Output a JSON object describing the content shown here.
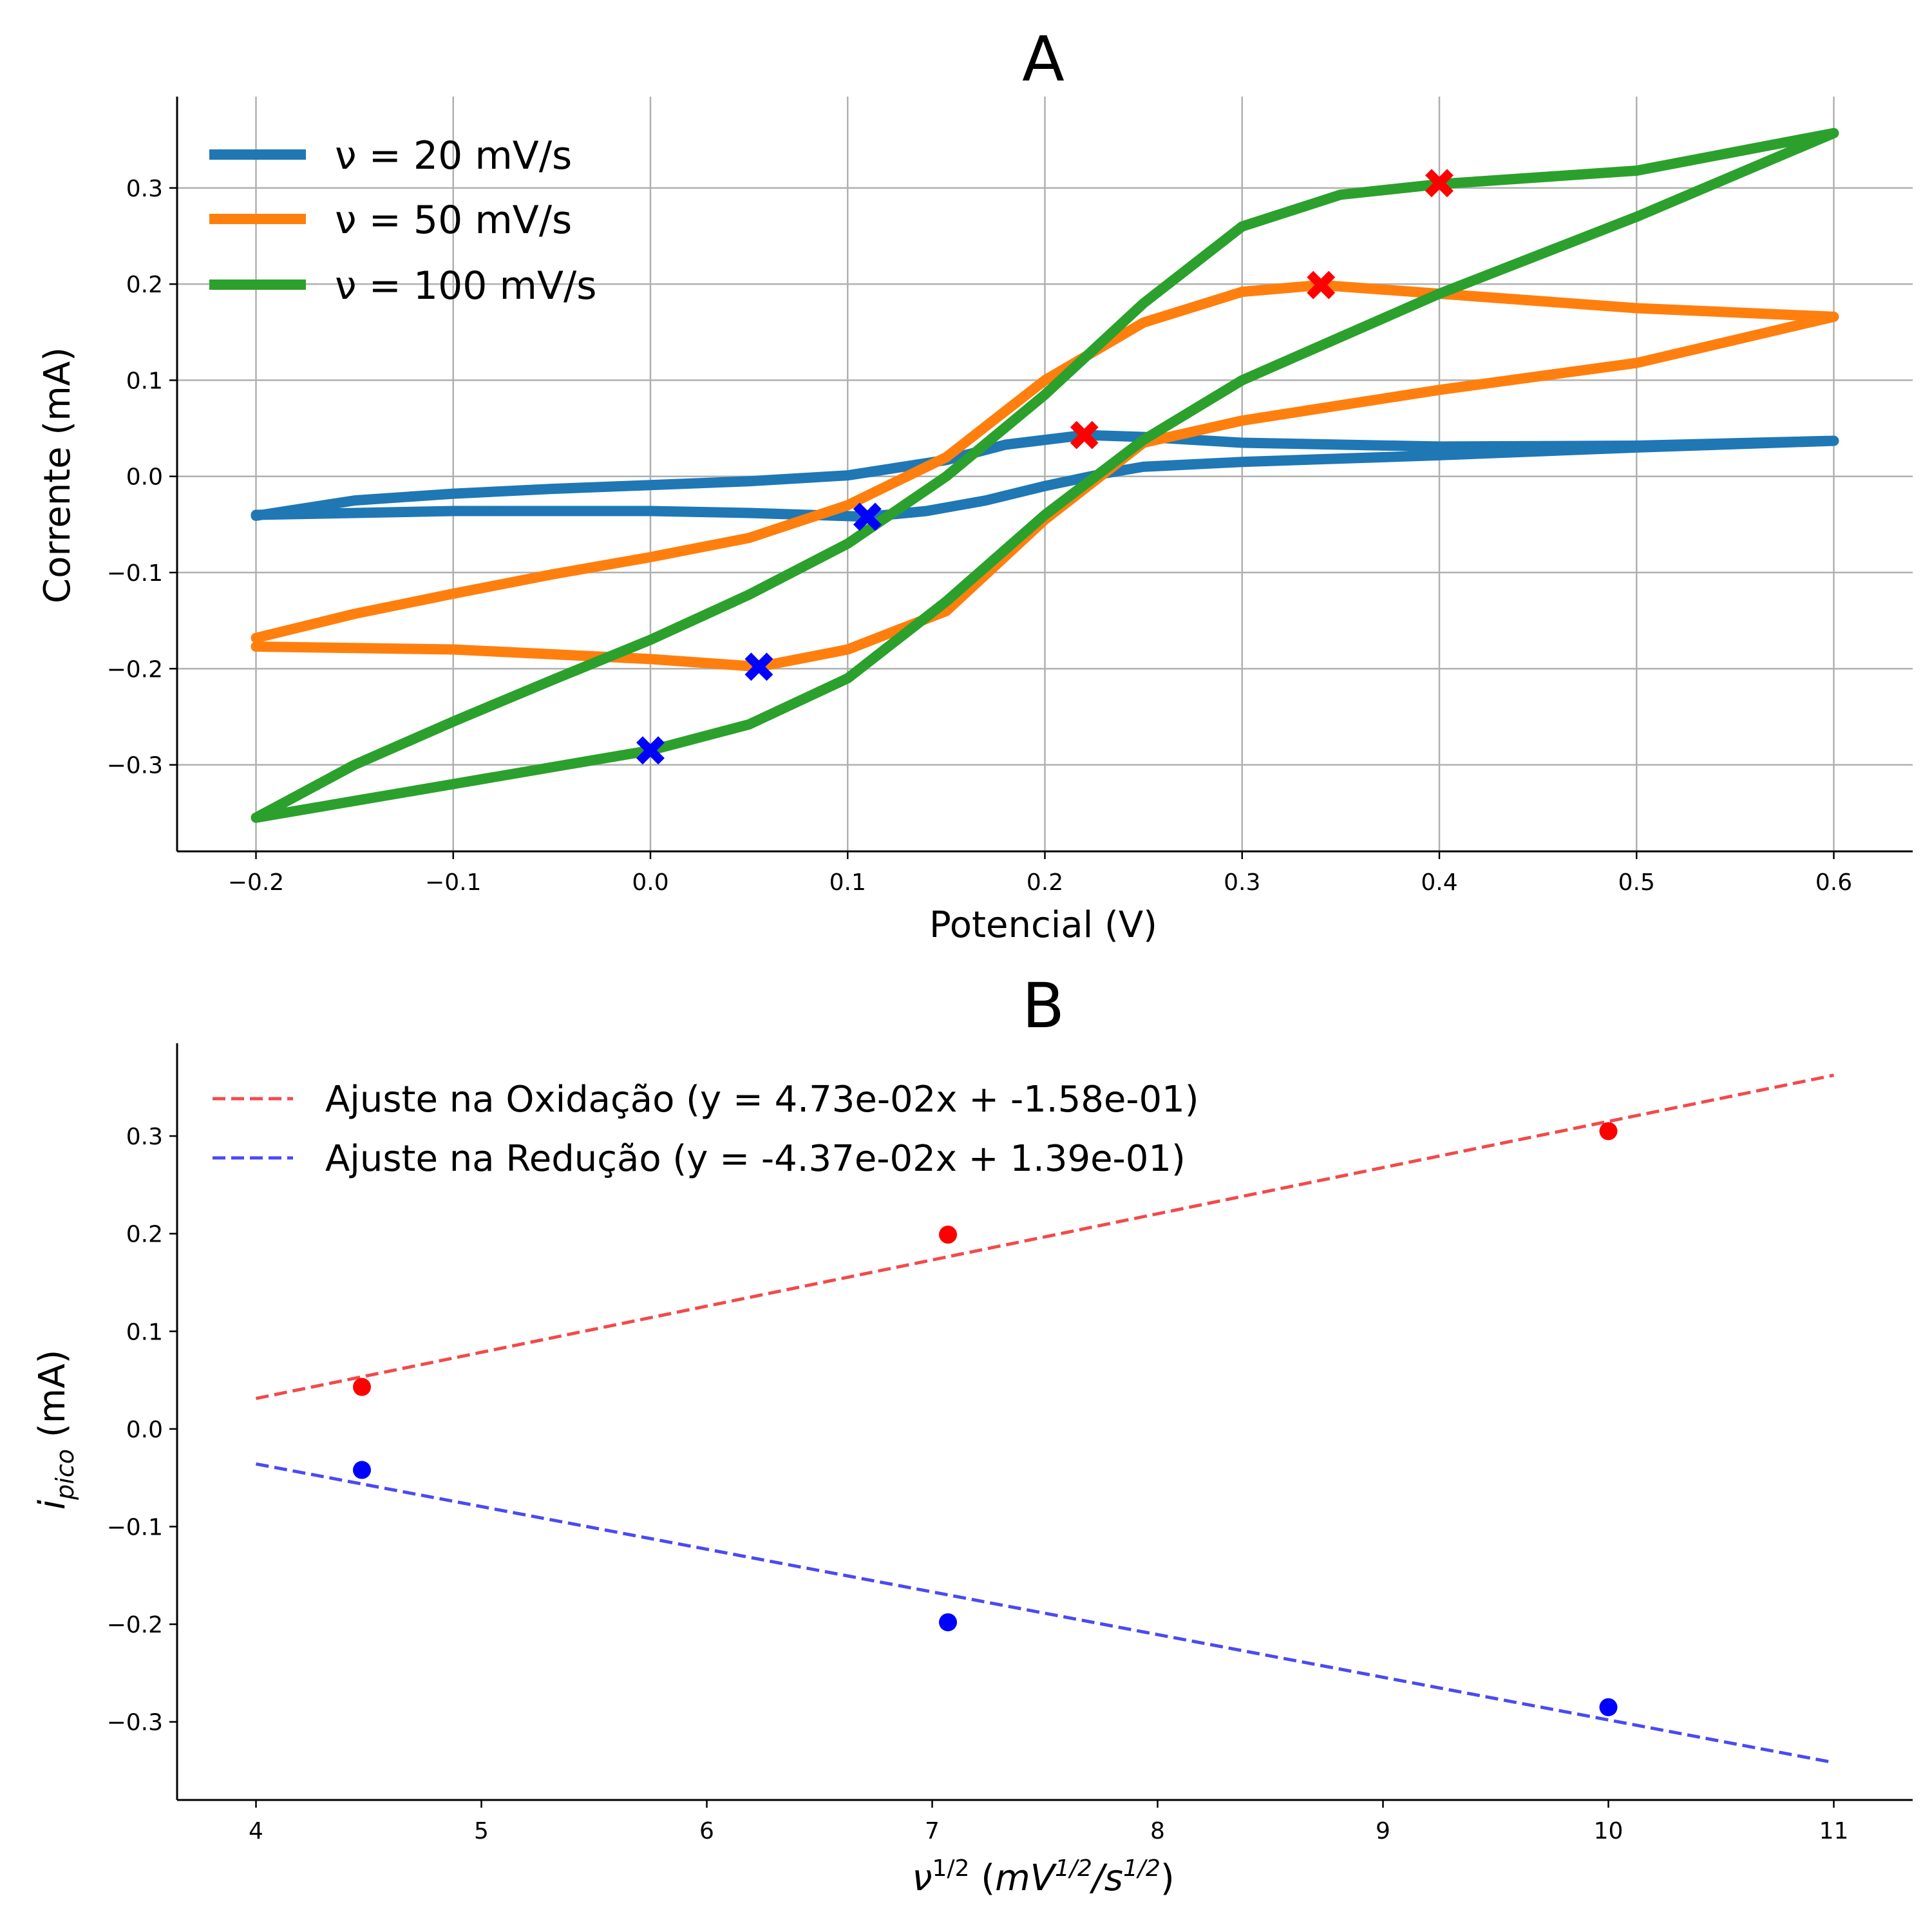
{
  "chart_data": [
    {
      "type": "line",
      "title": "A",
      "xlabel": "Potencial (V)",
      "ylabel": "Corrente (mA)",
      "xlim": [
        -0.24,
        0.64
      ],
      "ylim": [
        -0.39,
        0.395
      ],
      "xticks": [
        -0.2,
        -0.1,
        0.0,
        0.1,
        0.2,
        0.3,
        0.4,
        0.5,
        0.6
      ],
      "xtick_labels": [
        "−0.2",
        "−0.1",
        "0.0",
        "0.1",
        "0.2",
        "0.3",
        "0.4",
        "0.5",
        "0.6"
      ],
      "yticks": [
        -0.3,
        -0.2,
        -0.1,
        0.0,
        0.1,
        0.2,
        0.3
      ],
      "ytick_labels": [
        "−0.3",
        "−0.2",
        "−0.1",
        "0.0",
        "0.1",
        "0.2",
        "0.3"
      ],
      "grid": true,
      "legend_position": "top-left",
      "series": [
        {
          "name": "ν = 20 mV/s",
          "color": "#1f77b4",
          "forward": [
            [
              -0.2,
              -0.041
            ],
            [
              -0.15,
              -0.025
            ],
            [
              -0.1,
              -0.018
            ],
            [
              -0.05,
              -0.013
            ],
            [
              0.0,
              -0.009
            ],
            [
              0.05,
              -0.005
            ],
            [
              0.1,
              0.001
            ],
            [
              0.15,
              0.017
            ],
            [
              0.18,
              0.033
            ],
            [
              0.22,
              0.043
            ],
            [
              0.25,
              0.041
            ],
            [
              0.3,
              0.035
            ],
            [
              0.4,
              0.031
            ],
            [
              0.5,
              0.032
            ],
            [
              0.6,
              0.037
            ]
          ],
          "reverse": [
            [
              0.6,
              0.037
            ],
            [
              0.5,
              0.03
            ],
            [
              0.4,
              0.022
            ],
            [
              0.3,
              0.015
            ],
            [
              0.25,
              0.01
            ],
            [
              0.23,
              0.003
            ],
            [
              0.2,
              -0.01
            ],
            [
              0.17,
              -0.025
            ],
            [
              0.14,
              -0.036
            ],
            [
              0.11,
              -0.042
            ],
            [
              0.05,
              -0.038
            ],
            [
              0.0,
              -0.036
            ],
            [
              -0.1,
              -0.036
            ],
            [
              -0.2,
              -0.04
            ]
          ]
        },
        {
          "name": "ν = 50 mV/s",
          "color": "#ff7f0e",
          "forward": [
            [
              -0.2,
              -0.168
            ],
            [
              -0.15,
              -0.143
            ],
            [
              -0.1,
              -0.122
            ],
            [
              -0.05,
              -0.102
            ],
            [
              0.0,
              -0.084
            ],
            [
              0.05,
              -0.064
            ],
            [
              0.1,
              -0.03
            ],
            [
              0.15,
              0.02
            ],
            [
              0.2,
              0.1
            ],
            [
              0.25,
              0.16
            ],
            [
              0.3,
              0.192
            ],
            [
              0.34,
              0.199
            ],
            [
              0.4,
              0.19
            ],
            [
              0.5,
              0.175
            ],
            [
              0.6,
              0.166
            ]
          ],
          "reverse": [
            [
              0.6,
              0.166
            ],
            [
              0.5,
              0.118
            ],
            [
              0.4,
              0.09
            ],
            [
              0.3,
              0.058
            ],
            [
              0.25,
              0.035
            ],
            [
              0.2,
              -0.045
            ],
            [
              0.15,
              -0.14
            ],
            [
              0.1,
              -0.18
            ],
            [
              0.055,
              -0.198
            ],
            [
              0.0,
              -0.19
            ],
            [
              -0.05,
              -0.185
            ],
            [
              -0.1,
              -0.18
            ],
            [
              -0.2,
              -0.177
            ]
          ]
        },
        {
          "name": "ν = 100 mV/s",
          "color": "#2ca02c",
          "forward": [
            [
              -0.2,
              -0.355
            ],
            [
              -0.15,
              -0.3
            ],
            [
              -0.1,
              -0.255
            ],
            [
              -0.05,
              -0.212
            ],
            [
              0.0,
              -0.17
            ],
            [
              0.05,
              -0.123
            ],
            [
              0.1,
              -0.07
            ],
            [
              0.15,
              0.0
            ],
            [
              0.2,
              0.085
            ],
            [
              0.25,
              0.18
            ],
            [
              0.3,
              0.26
            ],
            [
              0.35,
              0.293
            ],
            [
              0.4,
              0.304
            ],
            [
              0.5,
              0.318
            ],
            [
              0.6,
              0.357
            ]
          ],
          "reverse": [
            [
              0.6,
              0.357
            ],
            [
              0.5,
              0.27
            ],
            [
              0.4,
              0.19
            ],
            [
              0.3,
              0.1
            ],
            [
              0.25,
              0.038
            ],
            [
              0.2,
              -0.04
            ],
            [
              0.15,
              -0.13
            ],
            [
              0.1,
              -0.21
            ],
            [
              0.05,
              -0.258
            ],
            [
              0.0,
              -0.285
            ],
            [
              -0.1,
              -0.32
            ],
            [
              -0.2,
              -0.355
            ]
          ]
        }
      ],
      "markers": {
        "oxidation_color": "#ff0000",
        "reduction_color": "#0000ff",
        "oxidation_peaks": [
          [
            0.22,
            0.043
          ],
          [
            0.34,
            0.199
          ],
          [
            0.4,
            0.305
          ]
        ],
        "reduction_peaks": [
          [
            0.11,
            -0.042
          ],
          [
            0.055,
            -0.198
          ],
          [
            0.0,
            -0.285
          ]
        ]
      }
    },
    {
      "type": "scatter",
      "title": "B",
      "xlabel_main": "ν",
      "xlabel_sup1": "1/2",
      "xlabel_paren_open": " (",
      "xlabel_mv": "mV",
      "xlabel_sup2": "1/2",
      "xlabel_slash": "/s",
      "xlabel_sup3": "1/2",
      "xlabel_paren_close": ")",
      "ylabel_i": "i",
      "ylabel_sub": "pico",
      "ylabel_unit": " (mA)",
      "xlim": [
        3.65,
        11.35
      ],
      "ylim": [
        -0.38,
        0.395
      ],
      "xticks": [
        4,
        5,
        6,
        7,
        8,
        9,
        10,
        11
      ],
      "xtick_labels": [
        "4",
        "5",
        "6",
        "7",
        "8",
        "9",
        "10",
        "11"
      ],
      "yticks": [
        -0.3,
        -0.2,
        -0.1,
        0.0,
        0.1,
        0.2,
        0.3
      ],
      "ytick_labels": [
        "−0.3",
        "−0.2",
        "−0.1",
        "0.0",
        "0.1",
        "0.2",
        "0.3"
      ],
      "grid": false,
      "legend_position": "top-left",
      "fits": [
        {
          "name": "Ajuste na Oxidação (y = 4.73e-02x + -1.58e-01)",
          "color": "#f24a4a",
          "slope": 0.0473,
          "intercept": -0.158,
          "x_range": [
            4,
            11
          ]
        },
        {
          "name": "Ajuste na Redução (y = -4.37e-02x + 1.39e-01)",
          "color": "#4a4af2",
          "slope": -0.0437,
          "intercept": 0.139,
          "x_range": [
            4,
            11
          ]
        }
      ],
      "points": [
        {
          "color": "#ff0000",
          "x": [
            4.47,
            7.07,
            10.0
          ],
          "y": [
            0.043,
            0.199,
            0.305
          ]
        },
        {
          "color": "#0000ff",
          "x": [
            4.47,
            7.07,
            10.0
          ],
          "y": [
            -0.042,
            -0.198,
            -0.285
          ]
        }
      ]
    }
  ]
}
